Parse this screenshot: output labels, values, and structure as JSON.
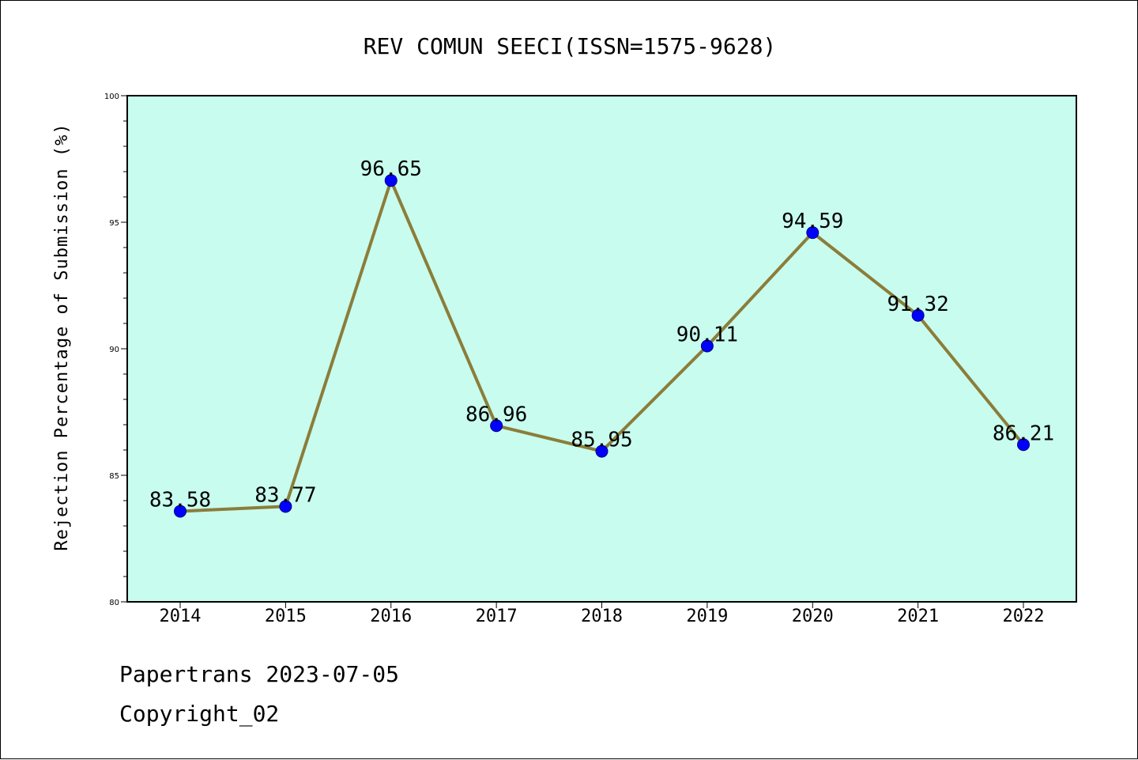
{
  "chart_data": {
    "type": "line",
    "title": "REV COMUN SEECI(ISSN=1575-9628)",
    "ylabel": "Rejection Percentage of Submission (%)",
    "xlabel": "",
    "categories": [
      "2014",
      "2015",
      "2016",
      "2017",
      "2018",
      "2019",
      "2020",
      "2021",
      "2022"
    ],
    "values": [
      83.58,
      83.77,
      96.65,
      86.96,
      85.95,
      90.11,
      94.59,
      91.32,
      86.21
    ],
    "data_labels": [
      "83.58",
      "83.77",
      "96.65",
      "86.96",
      "85.95",
      "90.11",
      "94.59",
      "91.32",
      "86.21"
    ],
    "ylim": [
      80,
      100
    ],
    "yticks": [
      80,
      85,
      90,
      95,
      100
    ],
    "y_minor_step": 1,
    "grid": false,
    "legend": "none",
    "colors": {
      "plot_background": "#c8fcee",
      "line": "#8b7d3a",
      "marker": "#0000ff",
      "marker_edge": "#00008b",
      "axes": "#000000"
    }
  },
  "footer": {
    "line1": "Papertrans 2023-07-05",
    "line2": "Copyright_02"
  }
}
